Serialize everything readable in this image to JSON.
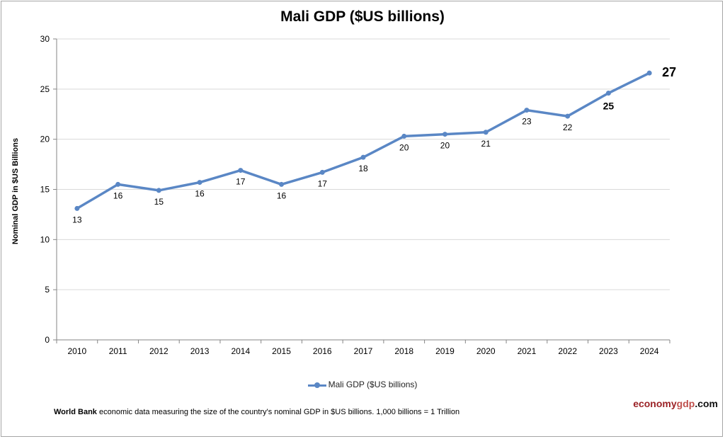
{
  "chart_data": {
    "type": "line",
    "title": "Mali GDP ($US billions)",
    "ylabel": "Nominal GDP in $US Billions",
    "xlabel": "",
    "categories": [
      "2010",
      "2011",
      "2012",
      "2013",
      "2014",
      "2015",
      "2016",
      "2017",
      "2018",
      "2019",
      "2020",
      "2021",
      "2022",
      "2023",
      "2024"
    ],
    "series": [
      {
        "name": "Mali GDP ($US billions)",
        "values": [
          13.1,
          15.5,
          14.9,
          15.7,
          16.9,
          15.5,
          16.7,
          18.2,
          20.3,
          20.5,
          20.7,
          22.9,
          22.3,
          24.6,
          26.6
        ],
        "color": "#5a87c5"
      }
    ],
    "data_labels": [
      "13",
      "16",
      "15",
      "16",
      "17",
      "16",
      "17",
      "18",
      "20",
      "20",
      "21",
      "23",
      "22",
      "25",
      "27"
    ],
    "ylim": [
      0,
      30
    ],
    "yticks": [
      "0",
      "5",
      "10",
      "15",
      "20",
      "25",
      "30"
    ],
    "grid": true,
    "legend": "bottom"
  },
  "footer": {
    "source_bold": "World Bank",
    "source_text": " economic data  measuring the size of the country's nominal GDP in $US billions. 1,000 billions = 1 Trillion"
  },
  "logo": {
    "part1": "economy",
    "part2": "gdp",
    "part3": ".com"
  }
}
